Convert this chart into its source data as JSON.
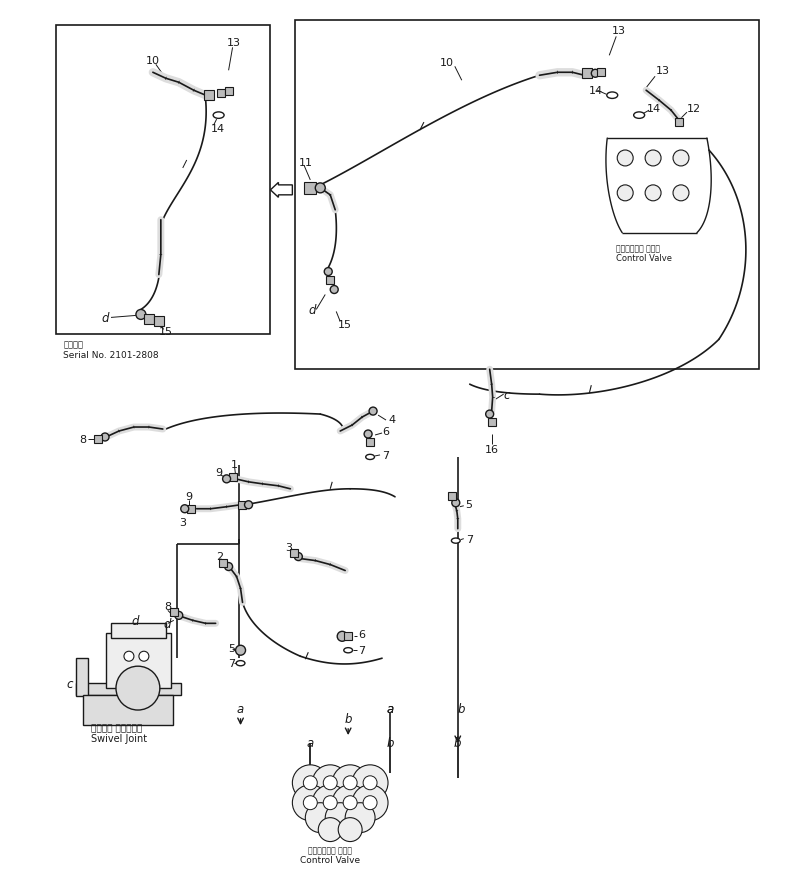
{
  "bg_color": "#ffffff",
  "lc": "#1a1a1a",
  "serial_note_ja": "適用号筞",
  "serial_note_en": "Serial No. 2101-2808",
  "control_valve_ja": "コントロール バルブ",
  "control_valve_en": "Control Valve",
  "swivel_joint_ja": "スイベル ジョイント",
  "swivel_joint_en": "Swivel Joint",
  "fig_width": 7.92,
  "fig_height": 8.7
}
